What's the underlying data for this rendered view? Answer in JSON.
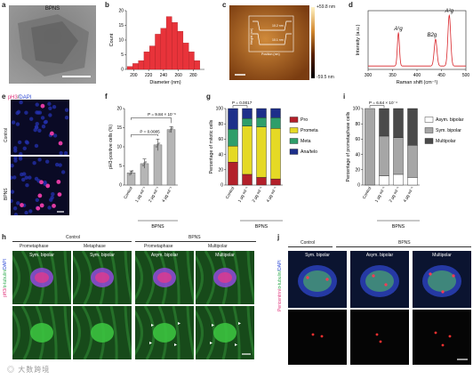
{
  "panels": {
    "a": {
      "label": "a",
      "title": "BPNS"
    },
    "b": {
      "label": "b",
      "xlabel": "Diameter (nm)",
      "ylabel": "Count"
    },
    "c": {
      "label": "c",
      "scale_max": "+59.8 nm",
      "scale_min": "-59.5 nm",
      "inset_ylabel": "Height (nm)",
      "inset_xlabel": "Position (nm)",
      "inset_v1": "10.2 nm",
      "inset_v2": "10.1 nm"
    },
    "d": {
      "label": "d",
      "xlabel": "Raman shift (cm⁻¹)",
      "ylabel": "Intensity (a.u.)",
      "peak1": "A¹g",
      "peak2": "B2g",
      "peak3": "A²g"
    },
    "e": {
      "label": "e",
      "title_ph3": "pH3",
      "title_sep": "/",
      "title_dapi": "DAPI",
      "row1": "Control",
      "row2": "BPNS"
    },
    "f": {
      "label": "f",
      "ylabel": "pH3-positive cells (%)",
      "p1": "P = 0.0085",
      "p2": "P = 9.84 × 10⁻⁶",
      "group": "BPNS"
    },
    "g": {
      "label": "g",
      "ylabel": "Percentage of mitotic cells",
      "p": "P = 0.0017",
      "group": "BPNS"
    },
    "i": {
      "label": "i",
      "ylabel": "Percentage of prometaphase cells",
      "p": "P = 6.64 × 10⁻⁴",
      "group": "BPNS"
    },
    "h": {
      "label": "h",
      "control": "Control",
      "bpns": "BPNS",
      "cols": [
        "Prometaphase",
        "Metaphase",
        "Prometaphase",
        "Multipolar"
      ],
      "cells": [
        "Sym. bipolar",
        "Sym. bipolar",
        "Asym. bipolar",
        "Multipolar"
      ],
      "ylabel_ph3": "pH3/",
      "ylabel_tub": "α-tubulin/",
      "ylabel_dapi": "DAPI"
    },
    "j": {
      "label": "j",
      "control": "Control",
      "bpns": "BPNS",
      "cells": [
        "Sym. bipolar",
        "Asym. bipolar",
        "Multipolar"
      ],
      "ylabel_peri": "Pericentrin/",
      "ylabel_tub": "α-tubulin/",
      "ylabel_dapi": "DAPI"
    }
  },
  "watermark": "大数跨境",
  "colors": {
    "hist_bar": "#e8333a",
    "raman_line": "#d9262b",
    "f_bar": "#b5b5b5",
    "pro": "#b3202a",
    "prometa": "#e5d925",
    "meta": "#2f9e6a",
    "anatelo": "#1d2f8a",
    "asym": "#ffffff",
    "sym": "#a6a6a6",
    "multi": "#4a4a4a"
  },
  "chart_data": [
    {
      "id": "b",
      "type": "bar",
      "xlabel": "Diameter (nm)",
      "ylabel": "Count",
      "x_ticks": [
        200,
        220,
        240,
        260,
        280
      ],
      "xlim": [
        190,
        295
      ],
      "ylim": [
        0,
        20
      ],
      "y_ticks": [
        0,
        5,
        10,
        15,
        20
      ],
      "bins": [
        195,
        202.5,
        210,
        217.5,
        225,
        232.5,
        240,
        247.5,
        255,
        262.5,
        270,
        277.5,
        285
      ],
      "values": [
        1,
        2,
        3,
        6,
        8,
        12,
        14,
        18,
        16,
        13,
        9,
        6,
        3
      ]
    },
    {
      "id": "d",
      "type": "line",
      "xlabel": "Raman shift (cm⁻¹)",
      "ylabel": "Intensity (a.u.)",
      "xlim": [
        300,
        500
      ],
      "x_ticks": [
        300,
        350,
        400,
        450,
        500
      ],
      "peaks": [
        {
          "x": 362,
          "h": 0.62,
          "w": 3
        },
        {
          "x": 438,
          "h": 0.5,
          "w": 4
        },
        {
          "x": 466,
          "h": 0.95,
          "w": 4
        }
      ]
    },
    {
      "id": "f",
      "type": "bar",
      "ylabel": "pH3-positive cells (%)",
      "categories": [
        "Control",
        "1 μg ml⁻¹",
        "2 μg ml⁻¹",
        "4 μg ml⁻¹"
      ],
      "values": [
        3.2,
        5.6,
        10.5,
        14.5
      ],
      "errors": [
        0.5,
        1.2,
        1.5,
        0.8
      ],
      "ylim": [
        0,
        20
      ],
      "y_ticks": [
        0,
        5,
        10,
        15,
        20
      ]
    },
    {
      "id": "g",
      "type": "bar",
      "stacked": true,
      "ylabel": "Percentage of mitotic cells",
      "categories": [
        "Control",
        "1 μg ml⁻¹",
        "2 μg ml⁻¹",
        "4 μg ml⁻¹"
      ],
      "ylim": [
        0,
        100
      ],
      "y_ticks": [
        0,
        20,
        40,
        60,
        80,
        100
      ],
      "series": [
        {
          "name": "Pro",
          "values": [
            30,
            14,
            10,
            8
          ]
        },
        {
          "name": "Prometa",
          "values": [
            21,
            63,
            66,
            66
          ]
        },
        {
          "name": "Meta",
          "values": [
            22,
            10,
            12,
            14
          ]
        },
        {
          "name": "Ana/telo",
          "values": [
            27,
            13,
            12,
            12
          ]
        }
      ]
    },
    {
      "id": "i",
      "type": "bar",
      "stacked": true,
      "ylabel": "Percentage of prometaphase cells",
      "categories": [
        "Control",
        "1 μg ml⁻¹",
        "2 μg ml⁻¹",
        "4 μg ml⁻¹"
      ],
      "ylim": [
        0,
        100
      ],
      "y_ticks": [
        0,
        20,
        40,
        60,
        80,
        100
      ],
      "series": [
        {
          "name": "Asym. bipolar",
          "values": [
            0,
            12,
            14,
            10
          ]
        },
        {
          "name": "Sym. bipolar",
          "values": [
            100,
            52,
            48,
            42
          ]
        },
        {
          "name": "Multipolar",
          "values": [
            0,
            36,
            38,
            48
          ]
        }
      ]
    }
  ]
}
